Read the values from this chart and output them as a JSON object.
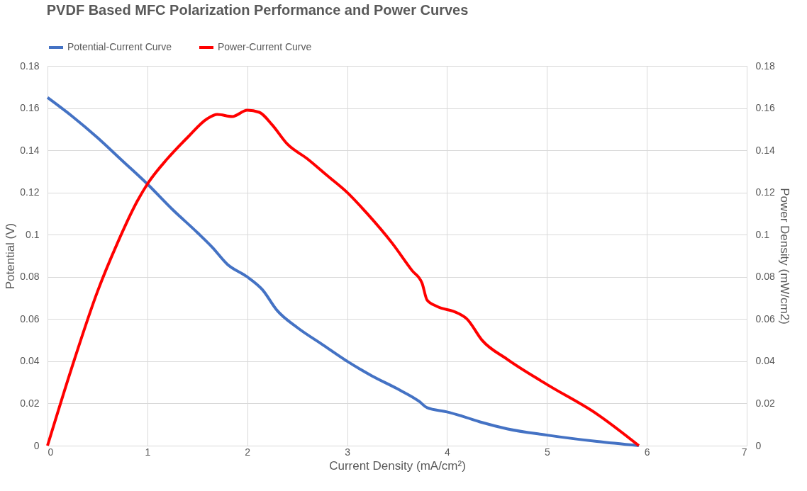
{
  "chart_data": {
    "type": "line",
    "title": "PVDF Based MFC Polarization Performance and Power Curves",
    "xlabel": "Current Density (mA/cm²)",
    "ylabel": "Potential (V)",
    "y2label": "Power Density (mW/cm2)",
    "xlim": [
      0,
      7
    ],
    "xticks": [
      0,
      1,
      2,
      3,
      4,
      5,
      6,
      7
    ],
    "ylim": [
      0,
      0.18
    ],
    "yticks": [
      0,
      0.02,
      0.04,
      0.06,
      0.08,
      0.1,
      0.12,
      0.14,
      0.16,
      0.18
    ],
    "y2lim": [
      0,
      0.18
    ],
    "y2ticks": [
      0,
      0.02,
      0.04,
      0.06,
      0.08,
      0.1,
      0.12,
      0.14,
      0.16,
      0.18
    ],
    "grid": true,
    "legend": "top",
    "marker": "none",
    "line_style": "solid",
    "series": [
      {
        "name": "Potential-Current Curve",
        "color": "#4472c4",
        "x": [
          0,
          0.25,
          0.5,
          0.75,
          1.0,
          1.25,
          1.5,
          1.65,
          1.8,
          2.0,
          2.15,
          2.3,
          2.5,
          2.75,
          3.0,
          3.25,
          3.5,
          3.72,
          3.8,
          4.0,
          4.15,
          4.35,
          4.6,
          5.0,
          5.5,
          5.92
        ],
        "values": [
          0.165,
          0.156,
          0.146,
          0.135,
          0.124,
          0.112,
          0.101,
          0.094,
          0.086,
          0.08,
          0.074,
          0.064,
          0.056,
          0.048,
          0.04,
          0.033,
          0.027,
          0.021,
          0.018,
          0.016,
          0.014,
          0.011,
          0.008,
          0.005,
          0.002,
          0
        ]
      },
      {
        "name": "Power-Current Curve",
        "color": "#ff0000",
        "axis": "y2",
        "x": [
          0,
          0.25,
          0.5,
          0.7,
          0.9,
          1.0,
          1.2,
          1.4,
          1.6,
          1.7,
          1.85,
          2.0,
          2.12,
          2.25,
          2.4,
          2.6,
          2.8,
          3.0,
          3.2,
          3.45,
          3.65,
          3.75,
          3.8,
          3.9,
          4.1,
          4.2,
          4.35,
          4.6,
          5.0,
          5.5,
          5.92
        ],
        "values": [
          0,
          0.038,
          0.073,
          0.096,
          0.116,
          0.124,
          0.136,
          0.146,
          0.155,
          0.157,
          0.156,
          0.159,
          0.158,
          0.152,
          0.143,
          0.136,
          0.128,
          0.12,
          0.11,
          0.096,
          0.083,
          0.077,
          0.069,
          0.066,
          0.063,
          0.06,
          0.05,
          0.041,
          0.029,
          0.015,
          0
        ]
      }
    ]
  }
}
